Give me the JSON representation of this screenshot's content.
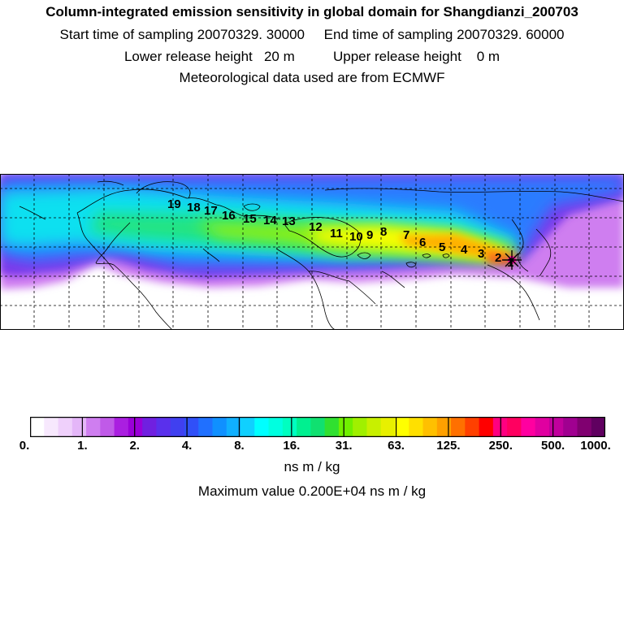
{
  "header": {
    "title": "Column-integrated emission sensitivity in global domain for Shangdianzi_200703",
    "start_label": "Start time of sampling",
    "start_value": "20070329. 30000",
    "end_label": "End time of sampling",
    "end_value": "20070329. 60000",
    "lower_label": "Lower release height",
    "lower_value": "20 m",
    "upper_label": "Upper release height",
    "upper_value": "0 m",
    "met_line": "Meteorological data used are from ECMWF"
  },
  "map": {
    "day_labels": [
      "1",
      "2",
      "3",
      "4",
      "5",
      "6",
      "7",
      "8",
      "9",
      "10",
      "11",
      "12",
      "13",
      "14",
      "15",
      "16",
      "17",
      "18",
      "19"
    ],
    "receptor_symbol": "star"
  },
  "colorbar": {
    "colors": [
      "#ffffff",
      "#f7e8fd",
      "#efd0fb",
      "#e4b6f8",
      "#cf7ef0",
      "#c05ae8",
      "#aa1fe0",
      "#9a00d8",
      "#7020e0",
      "#5a30ec",
      "#4040f0",
      "#3050f8",
      "#2070ff",
      "#1090ff",
      "#10b0ff",
      "#10d0ff",
      "#00ffff",
      "#00ffe0",
      "#00ffc0",
      "#00f090",
      "#10e070",
      "#30e030",
      "#70f000",
      "#a0f000",
      "#c8f000",
      "#e8f000",
      "#ffff00",
      "#ffe000",
      "#ffc000",
      "#ffa000",
      "#ff7000",
      "#ff4000",
      "#ff0000",
      "#ff0080",
      "#ff0060",
      "#ff00a0",
      "#e000a0",
      "#c0009c",
      "#a00090",
      "#800070",
      "#600060"
    ],
    "ticks": [
      "0.",
      "1.",
      "2.",
      "4.",
      "8.",
      "16.",
      "31.",
      "63.",
      "125.",
      "250.",
      "500.",
      "1000."
    ],
    "unit": "ns m / kg",
    "max_label": "Maximum value",
    "max_value": "0.200E+04 ns m / kg"
  }
}
